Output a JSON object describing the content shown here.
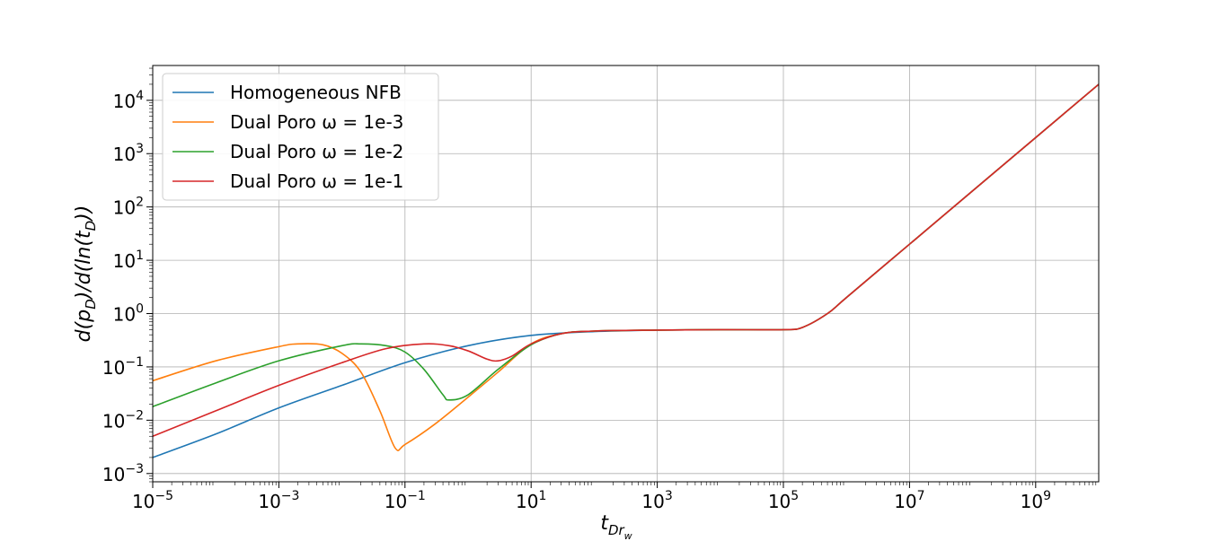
{
  "chart_data": {
    "type": "line",
    "xscale": "log",
    "yscale": "log",
    "xlim": [
      1e-05,
      10000000000.0
    ],
    "ylim": [
      0.0007,
      45000.0
    ],
    "grid": true,
    "legend_position": "upper-left",
    "xlabel": {
      "base": "t",
      "sub": "Dr",
      "subsub": "w"
    },
    "ylabel": "d(p_D)/d(ln(t_D))",
    "ylabel_parts": {
      "a": "d(p",
      "a_sub": "D",
      "b": ")/d(ln(t",
      "b_sub": "D",
      "c": "))"
    },
    "x_ticks": [
      {
        "value": 1e-05,
        "mantissa": "10",
        "exp": "−5"
      },
      {
        "value": 0.001,
        "mantissa": "10",
        "exp": "−3"
      },
      {
        "value": 0.1,
        "mantissa": "10",
        "exp": "−1"
      },
      {
        "value": 10.0,
        "mantissa": "10",
        "exp": "1"
      },
      {
        "value": 1000.0,
        "mantissa": "10",
        "exp": "3"
      },
      {
        "value": 100000.0,
        "mantissa": "10",
        "exp": "5"
      },
      {
        "value": 10000000.0,
        "mantissa": "10",
        "exp": "7"
      },
      {
        "value": 1000000000.0,
        "mantissa": "10",
        "exp": "9"
      }
    ],
    "y_ticks": [
      {
        "value": 0.001,
        "mantissa": "10",
        "exp": "−3"
      },
      {
        "value": 0.01,
        "mantissa": "10",
        "exp": "−2"
      },
      {
        "value": 0.1,
        "mantissa": "10",
        "exp": "−1"
      },
      {
        "value": 1.0,
        "mantissa": "10",
        "exp": "0"
      },
      {
        "value": 10.0,
        "mantissa": "10",
        "exp": "1"
      },
      {
        "value": 100.0,
        "mantissa": "10",
        "exp": "2"
      },
      {
        "value": 1000.0,
        "mantissa": "10",
        "exp": "3"
      },
      {
        "value": 10000.0,
        "mantissa": "10",
        "exp": "4"
      }
    ],
    "series": [
      {
        "name": "Homogeneous NFB",
        "color": "#1f77b4",
        "points": [
          [
            1e-05,
            0.002
          ],
          [
            0.0001,
            0.0055
          ],
          [
            0.001,
            0.017
          ],
          [
            0.01,
            0.045
          ],
          [
            0.1,
            0.12
          ],
          [
            1.0,
            0.25
          ],
          [
            10.0,
            0.39
          ],
          [
            100.0,
            0.46
          ],
          [
            1000.0,
            0.49
          ],
          [
            10000.0,
            0.5
          ],
          [
            100000.0,
            0.5
          ],
          [
            200000.0,
            0.55
          ],
          [
            500000.0,
            1.0
          ],
          [
            1000000.0,
            2.0
          ],
          [
            10000000.0,
            20
          ],
          [
            100000000.0,
            200
          ],
          [
            1000000000.0,
            2000
          ],
          [
            10000000000.0,
            20000
          ]
        ]
      },
      {
        "name": "Dual Poro ω = 1e-3",
        "color": "#ff7f0e",
        "points": [
          [
            1e-05,
            0.055
          ],
          [
            0.0001,
            0.13
          ],
          [
            0.001,
            0.24
          ],
          [
            0.002,
            0.27
          ],
          [
            0.005,
            0.26
          ],
          [
            0.01,
            0.18
          ],
          [
            0.02,
            0.08
          ],
          [
            0.04,
            0.015
          ],
          [
            0.07,
            0.003
          ],
          [
            0.1,
            0.0035
          ],
          [
            0.3,
            0.0085
          ],
          [
            1.0,
            0.027
          ],
          [
            3.0,
            0.08
          ],
          [
            10.0,
            0.27
          ],
          [
            30.0,
            0.42
          ],
          [
            100.0,
            0.47
          ],
          [
            1000.0,
            0.49
          ],
          [
            10000.0,
            0.5
          ],
          [
            100000.0,
            0.5
          ],
          [
            200000.0,
            0.55
          ],
          [
            500000.0,
            1.0
          ],
          [
            1000000.0,
            2.0
          ],
          [
            10000000.0,
            20
          ],
          [
            100000000.0,
            200
          ],
          [
            1000000000.0,
            2000
          ],
          [
            10000000000.0,
            20000
          ]
        ]
      },
      {
        "name": "Dual Poro ω = 1e-2",
        "color": "#2ca02c",
        "points": [
          [
            1e-05,
            0.018
          ],
          [
            0.0001,
            0.05
          ],
          [
            0.001,
            0.13
          ],
          [
            0.01,
            0.25
          ],
          [
            0.02,
            0.27
          ],
          [
            0.05,
            0.25
          ],
          [
            0.1,
            0.19
          ],
          [
            0.2,
            0.09
          ],
          [
            0.4,
            0.03
          ],
          [
            0.5,
            0.024
          ],
          [
            1.0,
            0.03
          ],
          [
            3.0,
            0.09
          ],
          [
            10.0,
            0.26
          ],
          [
            30.0,
            0.42
          ],
          [
            100.0,
            0.47
          ],
          [
            1000.0,
            0.49
          ],
          [
            10000.0,
            0.5
          ],
          [
            100000.0,
            0.5
          ],
          [
            200000.0,
            0.55
          ],
          [
            500000.0,
            1.0
          ],
          [
            1000000.0,
            2.0
          ],
          [
            10000000.0,
            20
          ],
          [
            100000000.0,
            200
          ],
          [
            1000000000.0,
            2000
          ],
          [
            10000000000.0,
            20000
          ]
        ]
      },
      {
        "name": "Dual Poro ω = 1e-1",
        "color": "#d62728",
        "points": [
          [
            1e-05,
            0.005
          ],
          [
            0.0001,
            0.015
          ],
          [
            0.001,
            0.045
          ],
          [
            0.01,
            0.12
          ],
          [
            0.05,
            0.22
          ],
          [
            0.2,
            0.27
          ],
          [
            0.5,
            0.25
          ],
          [
            1.0,
            0.2
          ],
          [
            2.0,
            0.14
          ],
          [
            3.0,
            0.13
          ],
          [
            5.0,
            0.16
          ],
          [
            10.0,
            0.27
          ],
          [
            30.0,
            0.42
          ],
          [
            100.0,
            0.47
          ],
          [
            1000.0,
            0.49
          ],
          [
            10000.0,
            0.5
          ],
          [
            100000.0,
            0.5
          ],
          [
            200000.0,
            0.55
          ],
          [
            500000.0,
            1.0
          ],
          [
            1000000.0,
            2.0
          ],
          [
            10000000.0,
            20
          ],
          [
            100000000.0,
            200
          ],
          [
            1000000000.0,
            2000
          ],
          [
            10000000000.0,
            20000
          ]
        ]
      }
    ]
  }
}
